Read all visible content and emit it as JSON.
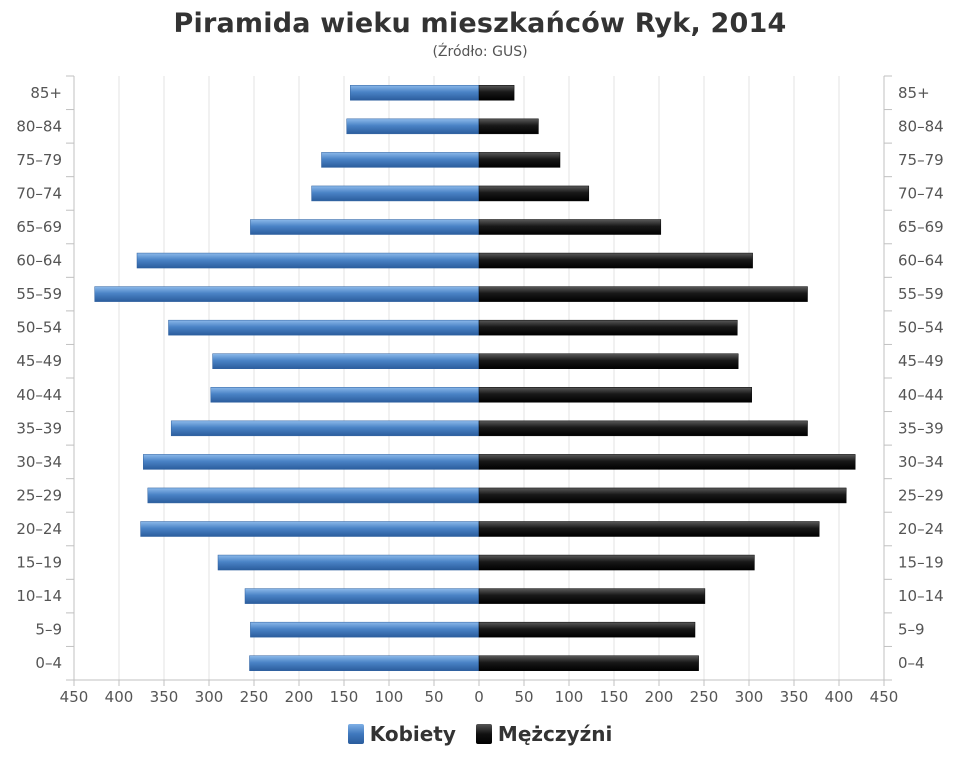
{
  "chart_data": {
    "type": "bar",
    "orientation": "horizontal-pyramid",
    "title": "Piramida wieku mieszkańców Ryk, 2014",
    "subtitle": "(Źródło: GUS)",
    "categories": [
      "85+",
      "80–84",
      "75–79",
      "70–74",
      "65–69",
      "60–64",
      "55–59",
      "50–54",
      "45–49",
      "40–44",
      "35–39",
      "30–34",
      "25–29",
      "20–24",
      "15–19",
      "10–14",
      "5–9",
      "0–4"
    ],
    "series": [
      {
        "name": "Kobiety",
        "side": "left",
        "color": "#3f78bd",
        "values": [
          143,
          147,
          175,
          186,
          254,
          380,
          427,
          345,
          296,
          298,
          342,
          373,
          368,
          376,
          290,
          260,
          254,
          255
        ]
      },
      {
        "name": "Mężczyźni",
        "side": "right",
        "color": "#111111",
        "values": [
          39,
          66,
          90,
          122,
          202,
          304,
          365,
          287,
          288,
          303,
          365,
          418,
          408,
          378,
          306,
          251,
          240,
          244
        ]
      }
    ],
    "x_ticks": [
      "450",
      "400",
      "350",
      "300",
      "250",
      "200",
      "150",
      "100",
      "50",
      "0",
      "50",
      "100",
      "150",
      "200",
      "250",
      "300",
      "350",
      "400",
      "450"
    ],
    "xlim": [
      -450,
      450
    ],
    "grid": true,
    "legend_position": "bottom"
  }
}
